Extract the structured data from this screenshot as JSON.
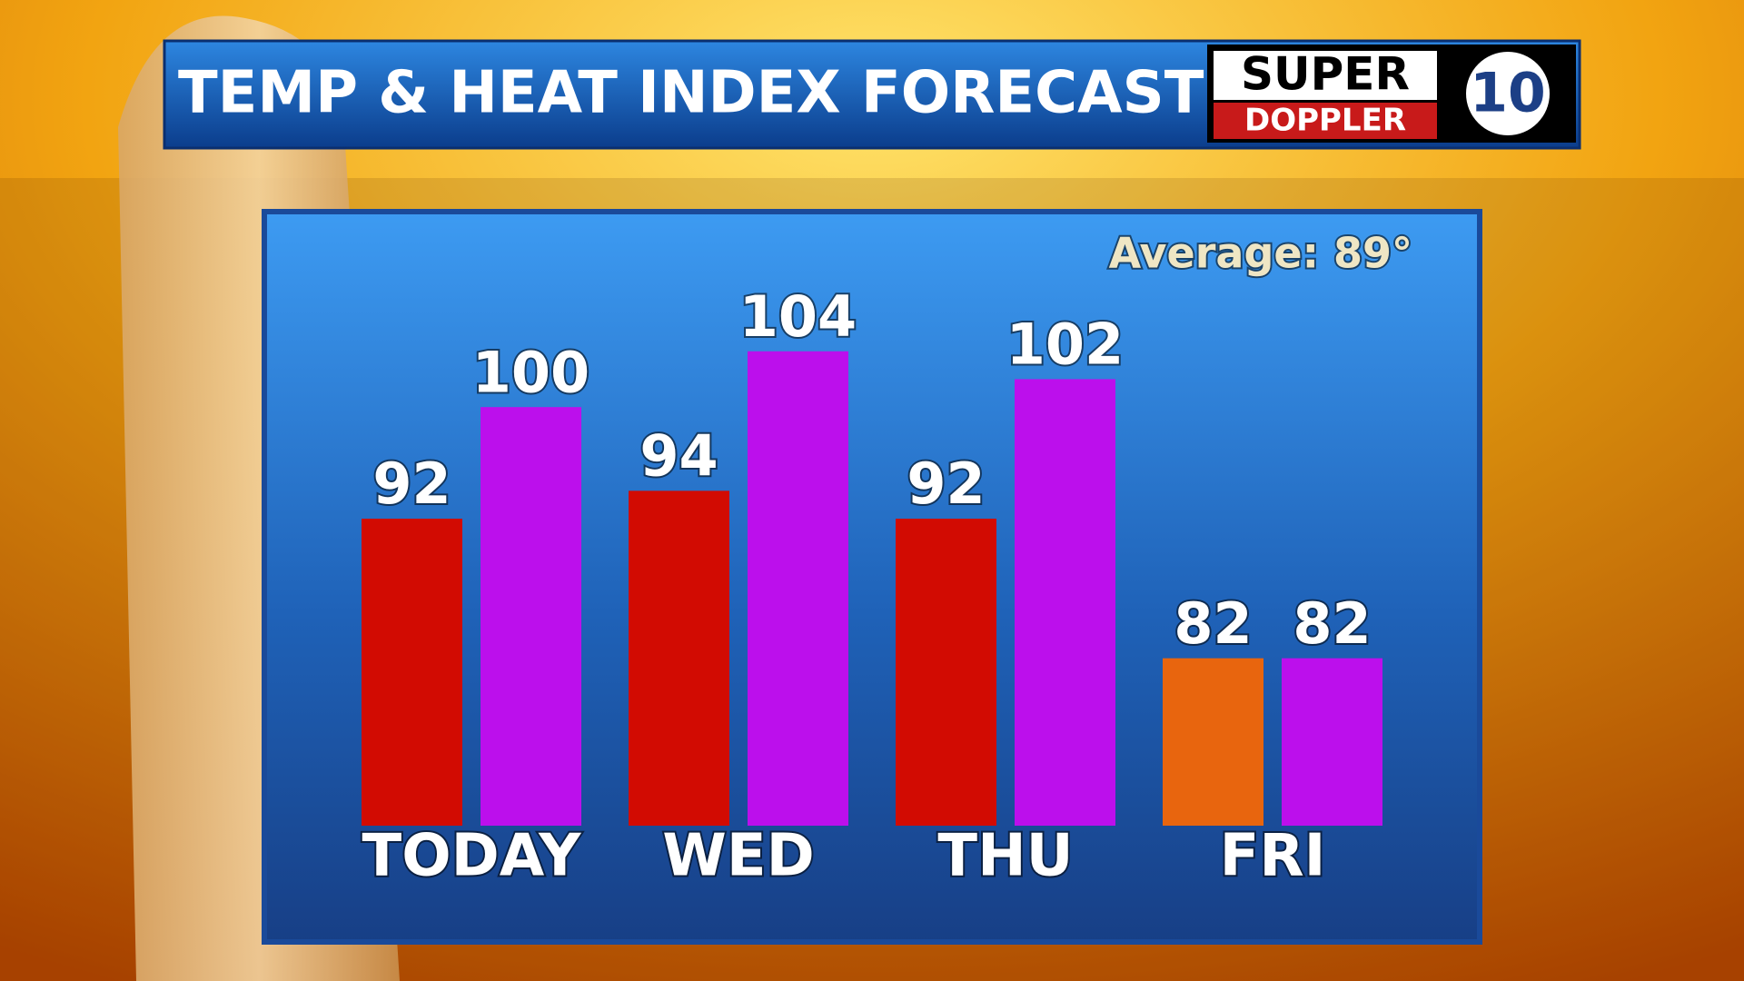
{
  "chart_data": {
    "type": "bar",
    "title": "TEMP & HEAT INDEX FORECAST",
    "annotation": "Average: 89°",
    "categories": [
      "TODAY",
      "WED",
      "THU",
      "FRI"
    ],
    "series": [
      {
        "colors": [
          "#d20b02",
          "#d20b02",
          "#d20b02",
          "#e8650e"
        ],
        "values": [
          92,
          94,
          92,
          82
        ]
      },
      {
        "color": "#bc0fec",
        "values": [
          100,
          104,
          102,
          82
        ]
      }
    ],
    "ylim": [
      70,
      106
    ]
  },
  "logo": {
    "line1": "SUPER",
    "line2": "DOPPLER",
    "number": "10"
  }
}
